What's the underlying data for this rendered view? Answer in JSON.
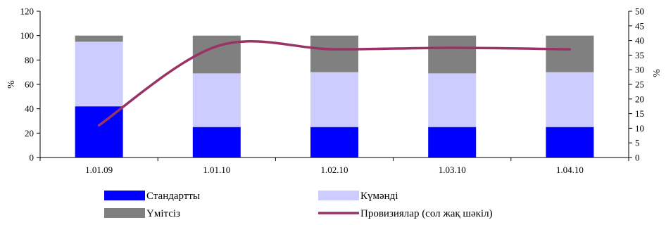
{
  "chart_data": {
    "type": "bar",
    "stacked": true,
    "categories": [
      "1.01.09",
      "1.01.10",
      "1.02.10",
      "1.03.10",
      "1.04.10"
    ],
    "series": [
      {
        "name": "Стандартты",
        "color": "#0000ff",
        "values": [
          42,
          25,
          25,
          25,
          25
        ]
      },
      {
        "name": "Күмәнді",
        "color": "#ccccff",
        "values": [
          53,
          44,
          45,
          44,
          45
        ]
      },
      {
        "name": "Үмітсіз",
        "color": "#808080",
        "values": [
          5,
          31,
          30,
          31,
          30
        ]
      }
    ],
    "line_series": {
      "name": "Провизиялар (сол жақ шәкіл)",
      "color": "#993366",
      "axis": "right",
      "values": [
        11,
        38,
        37,
        37.5,
        37
      ]
    },
    "ylabel": "%",
    "y2label": "%",
    "ylim": [
      0,
      120
    ],
    "y2lim": [
      0,
      50
    ],
    "yticks": [
      0,
      20,
      40,
      60,
      80,
      100,
      120
    ],
    "y2ticks": [
      0,
      5,
      10,
      15,
      20,
      25,
      30,
      35,
      40,
      45,
      50
    ],
    "grid": false,
    "legend_position": "bottom"
  }
}
